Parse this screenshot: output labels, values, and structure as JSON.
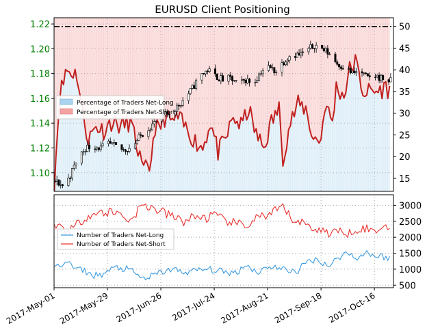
{
  "chart_data": [
    {
      "type": "candlestick+area+line",
      "title": "EURUSD Client Positioning",
      "left_axis": {
        "ticks": [
          "1.10",
          "1.12",
          "1.14",
          "1.16",
          "1.18",
          "1.20",
          "1.22"
        ],
        "values": [
          1.1,
          1.12,
          1.14,
          1.16,
          1.18,
          1.2,
          1.22
        ],
        "range": [
          1.085,
          1.225
        ],
        "tick_color": "#008000"
      },
      "right_axis": {
        "ticks": [
          "15",
          "20",
          "25",
          "30",
          "35",
          "40",
          "45",
          "50"
        ],
        "values": [
          15,
          20,
          25,
          30,
          35,
          40,
          45,
          50
        ],
        "range": [
          12,
          52
        ]
      },
      "legend": {
        "placement": "middle-left",
        "entries": [
          {
            "label": "Percentage of Traders Net-Long",
            "color": "#aad4ee"
          },
          {
            "label": "Percentage of Traders Net-Short",
            "color": "#f4a3a3"
          }
        ]
      },
      "reference_line": {
        "value": 50,
        "style": "dash-dot",
        "color": "#000000"
      },
      "grid": true,
      "series": [
        {
          "name": "Percentage of Traders Net-Long",
          "color": "#aad4ee",
          "anchors": [
            [
              0,
              13
            ],
            [
              3,
              35
            ],
            [
              5,
              37
            ],
            [
              6,
              40
            ],
            [
              12,
              39
            ],
            [
              15,
              30
            ],
            [
              18,
              24
            ],
            [
              22,
              27
            ],
            [
              26,
              26
            ],
            [
              30,
              28
            ],
            [
              35,
              27
            ],
            [
              40,
              28
            ],
            [
              45,
              20
            ],
            [
              46,
              17
            ],
            [
              50,
              17
            ],
            [
              53,
              27
            ],
            [
              55,
              26
            ],
            [
              58,
              29
            ],
            [
              62,
              28
            ],
            [
              65,
              29
            ],
            [
              70,
              26
            ],
            [
              75,
              23
            ],
            [
              78,
              22
            ],
            [
              82,
              28
            ],
            [
              86,
              21
            ],
            [
              90,
              24
            ],
            [
              94,
              29
            ],
            [
              98,
              27
            ],
            [
              102,
              31
            ],
            [
              106,
              25
            ],
            [
              110,
              22
            ],
            [
              114,
              28
            ],
            [
              118,
              31
            ],
            [
              120,
              20
            ],
            [
              124,
              28
            ],
            [
              128,
              32
            ],
            [
              132,
              31
            ],
            [
              136,
              24
            ],
            [
              140,
              24
            ],
            [
              142,
              32
            ],
            [
              146,
              28
            ],
            [
              148,
              36
            ],
            [
              152,
              34
            ],
            [
              155,
              40
            ],
            [
              158,
              42
            ],
            [
              162,
              35
            ],
            [
              165,
              35
            ],
            [
              170,
              35
            ],
            [
              174,
              36
            ],
            [
              176,
              35
            ]
          ]
        },
        {
          "name": "Percentage of Traders Net-Short",
          "color": "#f4a3a3"
        },
        {
          "name": "EURUSD",
          "type": "candlestick",
          "color": "#000000",
          "anchors": [
            [
              0,
              1.093
            ],
            [
              5,
              1.089
            ],
            [
              8,
              1.098
            ],
            [
              12,
              1.112
            ],
            [
              16,
              1.12
            ],
            [
              20,
              1.122
            ],
            [
              24,
              1.12
            ],
            [
              28,
              1.123
            ],
            [
              32,
              1.121
            ],
            [
              36,
              1.118
            ],
            [
              40,
              1.121
            ],
            [
              44,
              1.128
            ],
            [
              48,
              1.135
            ],
            [
              52,
              1.14
            ],
            [
              56,
              1.145
            ],
            [
              60,
              1.148
            ],
            [
              64,
              1.153
            ],
            [
              68,
              1.16
            ],
            [
              72,
              1.168
            ],
            [
              76,
              1.178
            ],
            [
              80,
              1.183
            ],
            [
              84,
              1.178
            ],
            [
              88,
              1.175
            ],
            [
              92,
              1.176
            ],
            [
              96,
              1.171
            ],
            [
              100,
              1.175
            ],
            [
              104,
              1.172
            ],
            [
              108,
              1.182
            ],
            [
              112,
              1.185
            ],
            [
              116,
              1.182
            ],
            [
              120,
              1.19
            ],
            [
              124,
              1.196
            ],
            [
              128,
              1.195
            ],
            [
              132,
              1.198
            ],
            [
              136,
              1.203
            ],
            [
              140,
              1.2
            ],
            [
              144,
              1.196
            ],
            [
              148,
              1.188
            ],
            [
              152,
              1.185
            ],
            [
              156,
              1.18
            ],
            [
              160,
              1.182
            ],
            [
              164,
              1.176
            ],
            [
              168,
              1.178
            ],
            [
              172,
              1.176
            ],
            [
              176,
              1.174
            ]
          ]
        }
      ]
    },
    {
      "type": "line",
      "right_axis": {
        "ticks": [
          "500",
          "1000",
          "1500",
          "2000",
          "2500",
          "3000"
        ],
        "values": [
          500,
          1000,
          1500,
          2000,
          2500,
          3000
        ],
        "range": [
          420,
          3330
        ]
      },
      "x_axis": {
        "ticks": [
          "2017-May-01",
          "2017-May-29",
          "2017-Jun-26",
          "2017-Jul-24",
          "2017-Aug-21",
          "2017-Sep-18",
          "2017-Oct-16"
        ],
        "range": [
          "2017-05-01",
          "2017-10-26"
        ]
      },
      "legend": {
        "placement": "upper-left",
        "entries": [
          {
            "label": "Number of Traders Net-Long",
            "color": "#3a9be2"
          },
          {
            "label": "Number of Traders Net-Short",
            "color": "#e8312e"
          }
        ]
      },
      "grid": true,
      "series": [
        {
          "name": "Number of Traders Net-Long",
          "color": "#3a9be2",
          "anchors": [
            [
              0,
              1100
            ],
            [
              3,
              1050
            ],
            [
              6,
              1300
            ],
            [
              9,
              1100
            ],
            [
              12,
              1000
            ],
            [
              16,
              950
            ],
            [
              20,
              800
            ],
            [
              26,
              850
            ],
            [
              32,
              1050
            ],
            [
              38,
              1000
            ],
            [
              42,
              900
            ],
            [
              46,
              700
            ],
            [
              50,
              750
            ],
            [
              56,
              900
            ],
            [
              62,
              1000
            ],
            [
              68,
              900
            ],
            [
              74,
              950
            ],
            [
              80,
              1000
            ],
            [
              86,
              950
            ],
            [
              90,
              900
            ],
            [
              96,
              900
            ],
            [
              100,
              1150
            ],
            [
              104,
              1000
            ],
            [
              108,
              900
            ],
            [
              112,
              1100
            ],
            [
              116,
              1050
            ],
            [
              120,
              1000
            ],
            [
              124,
              950
            ],
            [
              128,
              950
            ],
            [
              132,
              1200
            ],
            [
              136,
              1300
            ],
            [
              140,
              1250
            ],
            [
              144,
              1100
            ],
            [
              148,
              1300
            ],
            [
              152,
              1500
            ],
            [
              156,
              1450
            ],
            [
              160,
              1350
            ],
            [
              164,
              1550
            ],
            [
              168,
              1400
            ],
            [
              172,
              1400
            ],
            [
              176,
              1350
            ]
          ]
        },
        {
          "name": "Number of Traders Net-Short",
          "color": "#e8312e",
          "anchors": [
            [
              0,
              2300
            ],
            [
              3,
              2400
            ],
            [
              6,
              2200
            ],
            [
              10,
              2300
            ],
            [
              14,
              2500
            ],
            [
              18,
              2700
            ],
            [
              24,
              2750
            ],
            [
              30,
              2800
            ],
            [
              36,
              2700
            ],
            [
              40,
              2500
            ],
            [
              44,
              2850
            ],
            [
              48,
              3000
            ],
            [
              52,
              2900
            ],
            [
              56,
              2800
            ],
            [
              60,
              2700
            ],
            [
              64,
              2600
            ],
            [
              68,
              2500
            ],
            [
              72,
              2600
            ],
            [
              76,
              2650
            ],
            [
              80,
              2600
            ],
            [
              84,
              2700
            ],
            [
              88,
              2550
            ],
            [
              92,
              2500
            ],
            [
              96,
              2400
            ],
            [
              100,
              2350
            ],
            [
              104,
              2500
            ],
            [
              108,
              2700
            ],
            [
              112,
              2600
            ],
            [
              116,
              2800
            ],
            [
              120,
              2950
            ],
            [
              124,
              2600
            ],
            [
              128,
              2500
            ],
            [
              132,
              2400
            ],
            [
              136,
              2300
            ],
            [
              140,
              2200
            ],
            [
              144,
              2150
            ],
            [
              148,
              2200
            ],
            [
              152,
              2100
            ],
            [
              156,
              2200
            ],
            [
              160,
              2300
            ],
            [
              164,
              2250
            ],
            [
              168,
              2200
            ],
            [
              172,
              2300
            ],
            [
              176,
              2400
            ]
          ]
        }
      ]
    }
  ]
}
